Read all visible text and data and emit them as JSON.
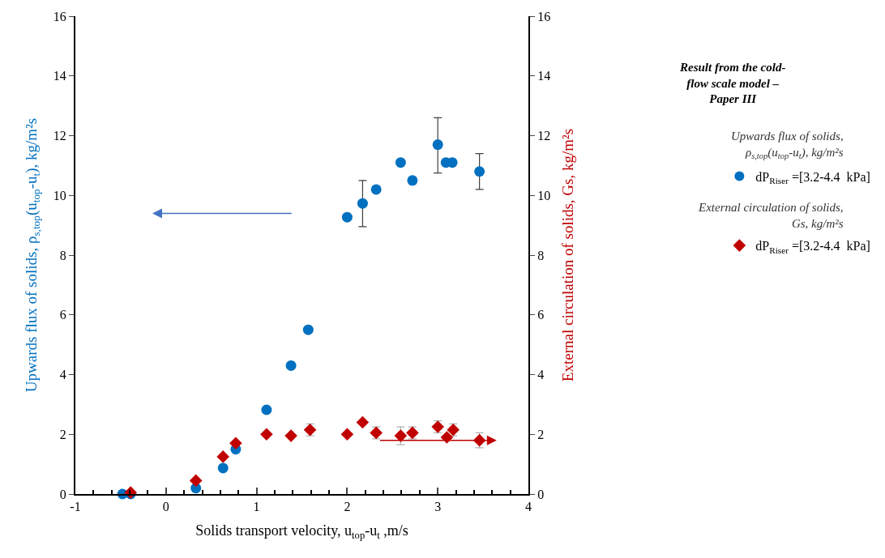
{
  "chart_data": {
    "type": "scatter",
    "title": "Result from the cold-flow scale model – Paper III",
    "xlabel": "Solids transport velocity, u$_{top}$-u$_{t}$ ,m/s",
    "ylabel": "Upwards flux of solids, ρ$_{s,top}$(u$_{top}$-u$_{t}$), kg/m²s",
    "y2label": "External circulation of solids, Gs, kg/m²s",
    "xlim": [
      -1,
      4
    ],
    "xticks": [
      -1,
      0,
      1,
      2,
      3,
      4
    ],
    "ylim": [
      0,
      16
    ],
    "yticks": [
      0,
      2,
      4,
      6,
      8,
      10,
      12,
      14,
      16
    ],
    "y2lim": [
      0,
      16
    ],
    "y2ticks": [
      0,
      2,
      4,
      6,
      8,
      10,
      12,
      14,
      16
    ],
    "legend": "right",
    "annotations": [
      "Upwards flux of solids, ρ$_{s,top}$(u$_{top}$-u$_{t}$), kg/m²s",
      "External circulation of solids, Gs, kg/m²s"
    ],
    "series": [
      {
        "color": "#0070c0",
        "marker": "circle",
        "x": [
          2.32,
          2.59,
          2.72,
          3.0,
          3.09,
          3.16,
          3.46
        ],
        "values": [
          10.2,
          11.1,
          10.5,
          11.7,
          11.1,
          11.1,
          10.8
        ],
        "errors": [
          null,
          null,
          null,
          [
            10.75,
            12.6
          ],
          null,
          null,
          [
            10.2,
            11.4
          ]
        ]
      },
      {
        "color": "#0070c0",
        "marker": "circle",
        "x": [
          1.38,
          1.57,
          2.0,
          2.17
        ],
        "values": [
          4.3,
          5.5,
          9.27,
          9.73
        ],
        "errors": [
          null,
          null,
          null,
          [
            8.95,
            10.5
          ]
        ]
      },
      {
        "name": "dP$_{Riser}$ =[3.2-4.4  kPa]",
        "color": "#0070c0",
        "marker": "circle",
        "x": [
          -0.48,
          -0.39,
          0.33,
          0.63,
          0.77,
          1.11
        ],
        "values": [
          0.0,
          0.0,
          0.2,
          0.87,
          1.5,
          2.82
        ]
      },
      {
        "color": "#c00000",
        "marker": "diamond",
        "axis": "y2",
        "x": [
          2.32,
          2.59,
          2.72,
          3.0,
          3.1,
          3.17,
          3.46
        ],
        "values": [
          2.05,
          1.95,
          2.05,
          2.25,
          1.9,
          2.15,
          1.8
        ],
        "errors": [
          0.2,
          0.3,
          0.2,
          0.2,
          null,
          0.2,
          0.25
        ]
      },
      {
        "color": "#c00000",
        "marker": "diamond",
        "axis": "y2",
        "x": [
          1.38,
          1.59,
          2.0,
          2.17
        ],
        "values": [
          1.95,
          2.15,
          2.0,
          2.4
        ],
        "errors": [
          null,
          0.2,
          null,
          null
        ]
      },
      {
        "name": "dP$_{Riser}$ =[3.2-4.4  kPa]",
        "color": "#c00000",
        "marker": "diamond",
        "axis": "y2",
        "x": [
          -0.39,
          0.33,
          0.63,
          0.77,
          1.11
        ],
        "values": [
          0.05,
          0.45,
          1.25,
          1.7,
          2.0
        ]
      }
    ]
  }
}
